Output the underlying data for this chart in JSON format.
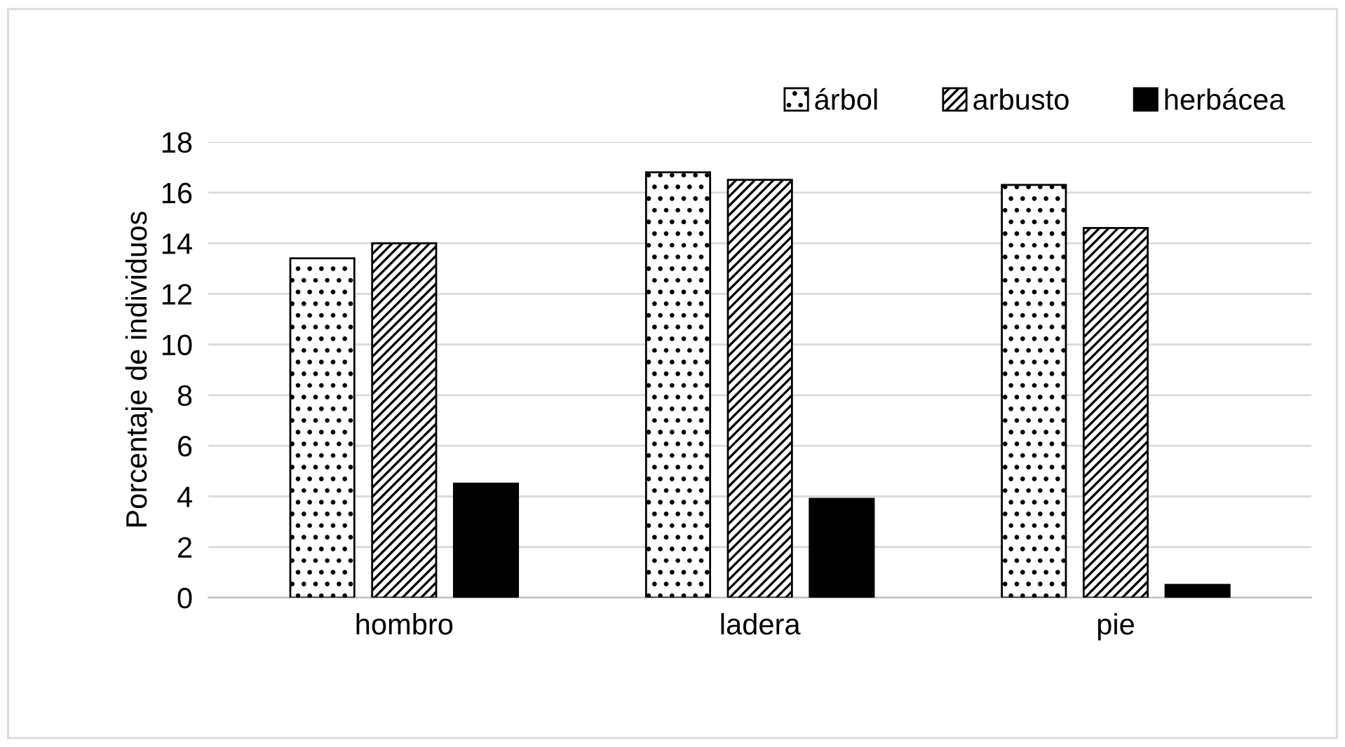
{
  "chart_data": {
    "type": "bar",
    "ylabel": "Porcentaje de individuos",
    "categories": [
      "hombro",
      "ladera",
      "pie"
    ],
    "series": [
      {
        "name": "árbol",
        "color": "#000000",
        "values": [
          13.4,
          16.8,
          16.3
        ]
      },
      {
        "name": "arbusto",
        "color": "#000000",
        "values": [
          14.0,
          16.5,
          14.6
        ]
      },
      {
        "name": "herbácea",
        "color": "#000000",
        "values": [
          4.5,
          3.9,
          0.5
        ]
      }
    ],
    "ylim": [
      0,
      18
    ],
    "yticks": [
      0,
      2,
      4,
      6,
      8,
      10,
      12,
      14,
      16,
      18
    ],
    "grid": "y",
    "legend": "top right"
  }
}
